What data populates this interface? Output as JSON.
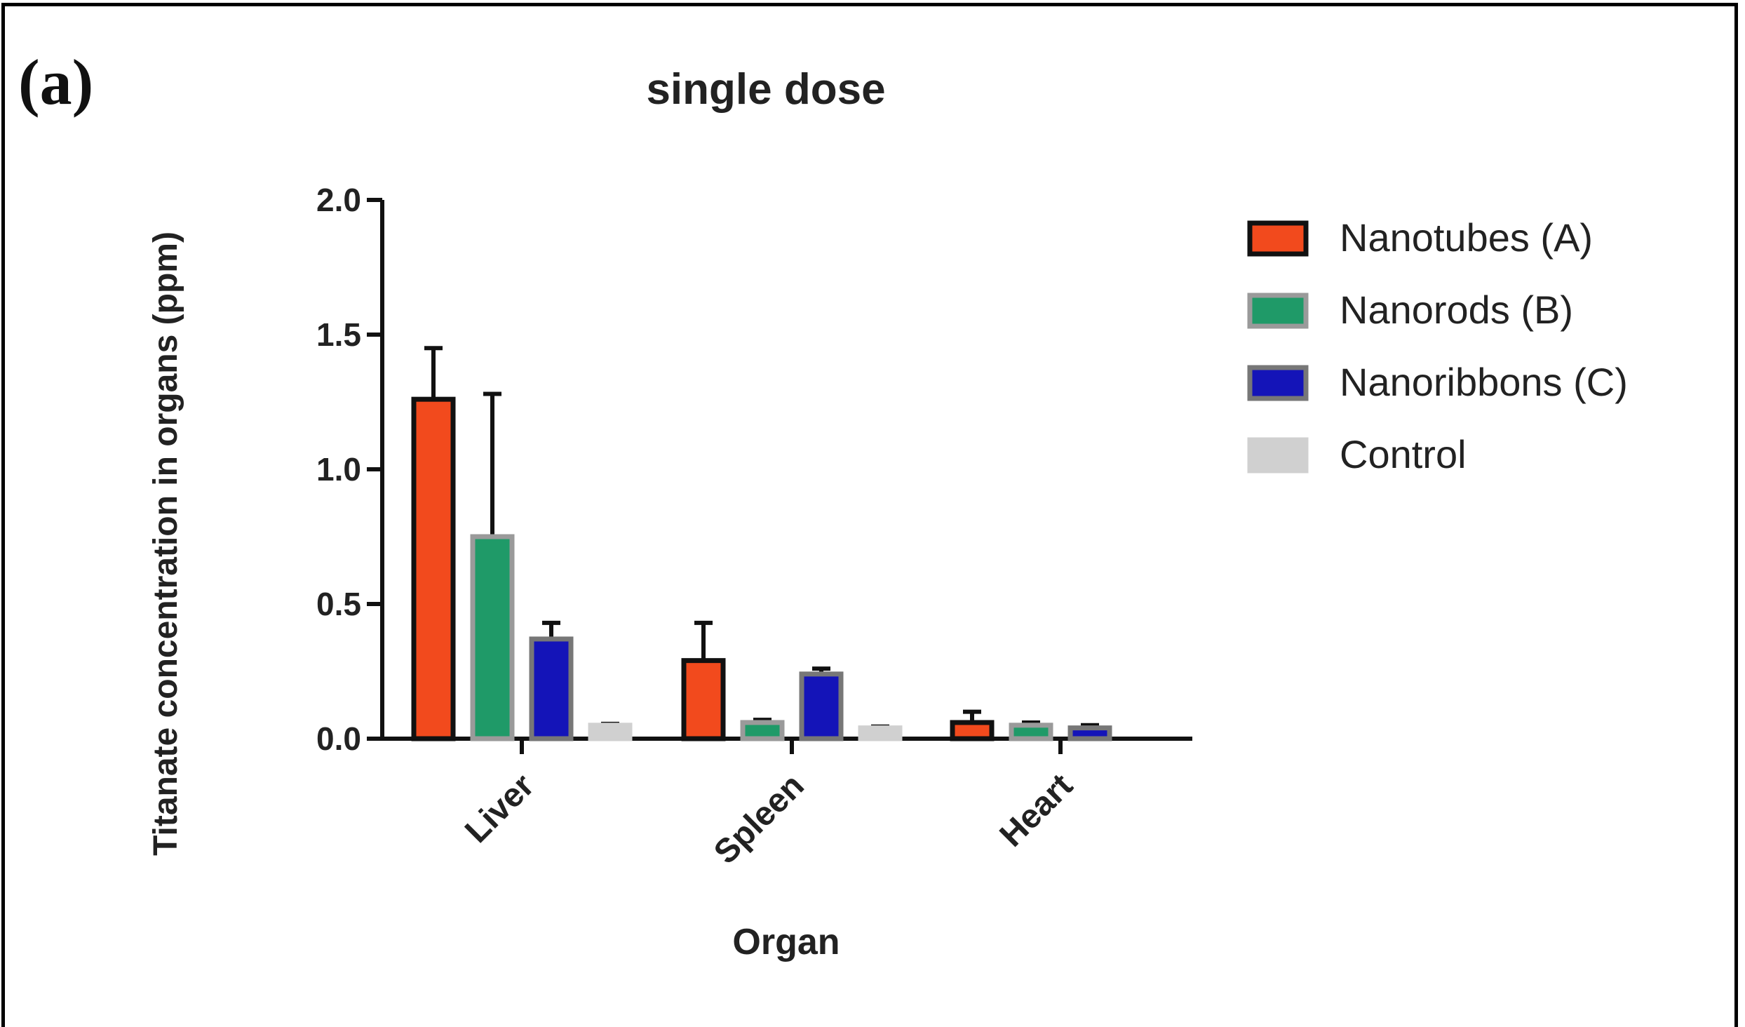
{
  "panel_label": "(a)",
  "chart_data": {
    "type": "bar",
    "title": "single dose",
    "xlabel": "Organ",
    "ylabel": "Titanate concentration in organs (ppm)",
    "ylim": [
      0,
      2.0
    ],
    "yticks": [
      "0.0",
      "0.5",
      "1.0",
      "1.5",
      "2.0"
    ],
    "ytick_values": [
      0,
      0.5,
      1.0,
      1.5,
      2.0
    ],
    "categories": [
      "Liver",
      "Spleen",
      "Heart"
    ],
    "legend_position": "right",
    "grid": false,
    "series": [
      {
        "name": "Nanotubes (A)",
        "fill": "#f24a1d",
        "stroke": "#111111",
        "values": [
          1.26,
          0.29,
          0.06
        ],
        "errors": [
          0.19,
          0.14,
          0.04
        ]
      },
      {
        "name": "Nanorods (B)",
        "fill": "#1f9a68",
        "stroke": "#9a9a9a",
        "values": [
          0.75,
          0.06,
          0.05
        ],
        "errors": [
          0.53,
          0.01,
          0.01
        ]
      },
      {
        "name": "Nanoribbons (C)",
        "fill": "#1414b8",
        "stroke": "#777777",
        "values": [
          0.37,
          0.24,
          0.04
        ],
        "errors": [
          0.06,
          0.02,
          0.01
        ]
      },
      {
        "name": "Control",
        "fill": "#d0d0d0",
        "stroke": "#d0d0d0",
        "values": [
          0.05,
          0.04,
          null
        ],
        "errors": [
          0.005,
          0.005,
          null
        ]
      }
    ]
  }
}
